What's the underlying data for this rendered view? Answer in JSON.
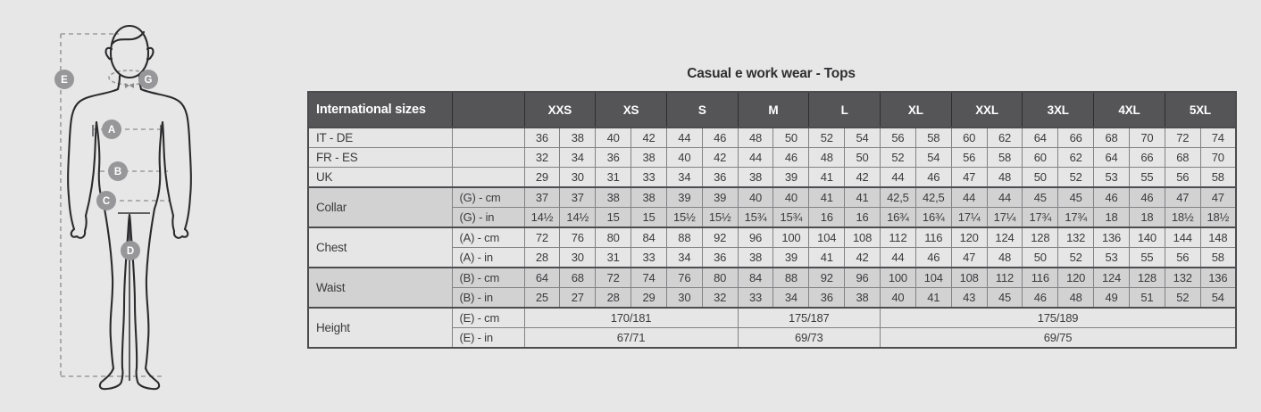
{
  "title": "Casual e work wear - Tops",
  "colors": {
    "page_bg": "#e7e7e7",
    "header_bg": "#555557",
    "header_text": "#ffffff",
    "row_light": "#e6e6e6",
    "row_dark": "#d2d2d3",
    "grid_line": "#828285",
    "group_line": "#4c4c4e",
    "text": "#3b3b3d",
    "badge_bg": "#97979a",
    "figure_line": "#2b2b2d",
    "figure_dash": "#9b9b9b"
  },
  "figure": {
    "points": [
      {
        "id": "E",
        "label": "E"
      },
      {
        "id": "G",
        "label": "G"
      },
      {
        "id": "A",
        "label": "A"
      },
      {
        "id": "B",
        "label": "B"
      },
      {
        "id": "C",
        "label": "C"
      },
      {
        "id": "D",
        "label": "D"
      }
    ]
  },
  "table": {
    "corner_label": "International sizes",
    "sizes": [
      "XXS",
      "XS",
      "S",
      "M",
      "L",
      "XL",
      "XXL",
      "3XL",
      "4XL",
      "5XL"
    ],
    "rows": [
      {
        "label": "IT - DE",
        "label_rows": 1,
        "unit": "",
        "shade": "light",
        "group_start": false,
        "values": [
          "36",
          "38",
          "40",
          "42",
          "44",
          "46",
          "48",
          "50",
          "52",
          "54",
          "56",
          "58",
          "60",
          "62",
          "64",
          "66",
          "68",
          "70",
          "72",
          "74"
        ]
      },
      {
        "label": "FR - ES",
        "label_rows": 1,
        "unit": "",
        "shade": "light",
        "group_start": false,
        "values": [
          "32",
          "34",
          "36",
          "38",
          "40",
          "42",
          "44",
          "46",
          "48",
          "50",
          "52",
          "54",
          "56",
          "58",
          "60",
          "62",
          "64",
          "66",
          "68",
          "70"
        ]
      },
      {
        "label": "UK",
        "label_rows": 1,
        "unit": "",
        "shade": "light",
        "group_start": false,
        "values": [
          "29",
          "30",
          "31",
          "33",
          "34",
          "36",
          "38",
          "39",
          "41",
          "42",
          "44",
          "46",
          "47",
          "48",
          "50",
          "52",
          "53",
          "55",
          "56",
          "58"
        ]
      },
      {
        "label": "Collar",
        "label_rows": 2,
        "unit": "(G) - cm",
        "shade": "dark",
        "group_start": true,
        "values": [
          "37",
          "37",
          "38",
          "38",
          "39",
          "39",
          "40",
          "40",
          "41",
          "41",
          "42,5",
          "42,5",
          "44",
          "44",
          "45",
          "45",
          "46",
          "46",
          "47",
          "47"
        ]
      },
      {
        "label": null,
        "unit": "(G) - in",
        "shade": "dark",
        "group_start": false,
        "values": [
          "14½",
          "14½",
          "15",
          "15",
          "15½",
          "15½",
          "15¾",
          "15¾",
          "16",
          "16",
          "16¾",
          "16¾",
          "17¼",
          "17¼",
          "17¾",
          "17¾",
          "18",
          "18",
          "18½",
          "18½"
        ]
      },
      {
        "label": "Chest",
        "label_rows": 2,
        "unit": "(A) - cm",
        "shade": "light",
        "group_start": true,
        "values": [
          "72",
          "76",
          "80",
          "84",
          "88",
          "92",
          "96",
          "100",
          "104",
          "108",
          "112",
          "116",
          "120",
          "124",
          "128",
          "132",
          "136",
          "140",
          "144",
          "148"
        ]
      },
      {
        "label": null,
        "unit": "(A) - in",
        "shade": "light",
        "group_start": false,
        "values": [
          "28",
          "30",
          "31",
          "33",
          "34",
          "36",
          "38",
          "39",
          "41",
          "42",
          "44",
          "46",
          "47",
          "48",
          "50",
          "52",
          "53",
          "55",
          "56",
          "58"
        ]
      },
      {
        "label": "Waist",
        "label_rows": 2,
        "unit": "(B) - cm",
        "shade": "dark",
        "group_start": true,
        "values": [
          "64",
          "68",
          "72",
          "74",
          "76",
          "80",
          "84",
          "88",
          "92",
          "96",
          "100",
          "104",
          "108",
          "112",
          "116",
          "120",
          "124",
          "128",
          "132",
          "136"
        ]
      },
      {
        "label": null,
        "unit": "(B) - in",
        "shade": "dark",
        "group_start": false,
        "values": [
          "25",
          "27",
          "28",
          "29",
          "30",
          "32",
          "33",
          "34",
          "36",
          "38",
          "40",
          "41",
          "43",
          "45",
          "46",
          "48",
          "49",
          "51",
          "52",
          "54"
        ]
      },
      {
        "label": "Height",
        "label_rows": 2,
        "unit": "(E) - cm",
        "shade": "light",
        "group_start": true,
        "merged": [
          {
            "span": 6,
            "value": "170/181"
          },
          {
            "span": 4,
            "value": "175/187"
          },
          {
            "span": 10,
            "value": "175/189"
          }
        ]
      },
      {
        "label": null,
        "unit": "(E) - in",
        "shade": "light",
        "group_start": false,
        "merged": [
          {
            "span": 6,
            "value": "67/71"
          },
          {
            "span": 4,
            "value": "69/73"
          },
          {
            "span": 10,
            "value": "69/75"
          }
        ]
      }
    ]
  }
}
